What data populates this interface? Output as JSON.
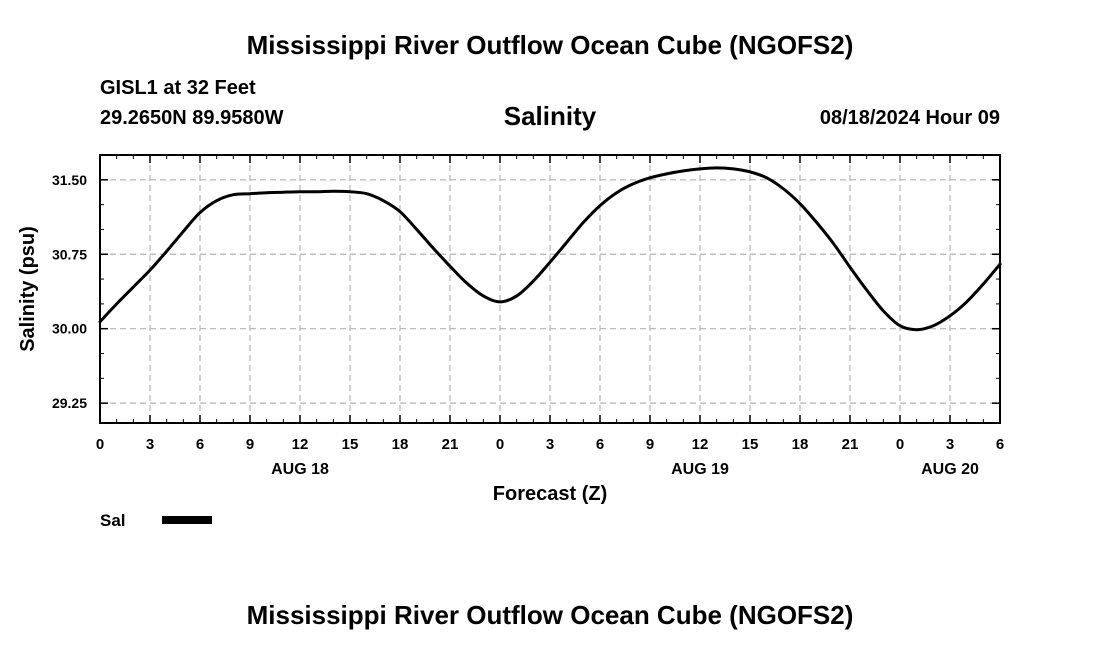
{
  "header": {
    "title": "Mississippi River Outflow Ocean Cube (NGOFS2)",
    "station": "GISL1 at 32 Feet",
    "coordinates": "29.2650N  89.9580W",
    "subtitle": "Salinity",
    "datetime": "08/18/2024 Hour 09"
  },
  "footer": {
    "title": "Mississippi River Outflow Ocean Cube (NGOFS2)"
  },
  "legend": {
    "label": "Sal"
  },
  "chart_data": {
    "type": "line",
    "title": "Salinity",
    "xlabel": "Forecast (Z)",
    "ylabel": "Salinity (psu)",
    "x_unit": "hours from 00Z AUG 18",
    "xlim": [
      0,
      54
    ],
    "ylim": [
      29.05,
      31.75
    ],
    "x_ticks": [
      {
        "x": 0,
        "label": "0"
      },
      {
        "x": 3,
        "label": "3"
      },
      {
        "x": 6,
        "label": "6"
      },
      {
        "x": 9,
        "label": "9"
      },
      {
        "x": 12,
        "label": "12"
      },
      {
        "x": 15,
        "label": "15"
      },
      {
        "x": 18,
        "label": "18"
      },
      {
        "x": 21,
        "label": "21"
      },
      {
        "x": 24,
        "label": "0"
      },
      {
        "x": 27,
        "label": "3"
      },
      {
        "x": 30,
        "label": "6"
      },
      {
        "x": 33,
        "label": "9"
      },
      {
        "x": 36,
        "label": "12"
      },
      {
        "x": 39,
        "label": "15"
      },
      {
        "x": 42,
        "label": "18"
      },
      {
        "x": 45,
        "label": "21"
      },
      {
        "x": 48,
        "label": "0"
      },
      {
        "x": 51,
        "label": "3"
      },
      {
        "x": 54,
        "label": "6"
      }
    ],
    "x_day_labels": [
      {
        "x": 12,
        "label": "AUG 18"
      },
      {
        "x": 36,
        "label": "AUG 19"
      },
      {
        "x": 51,
        "label": "AUG 20"
      }
    ],
    "y_ticks": [
      {
        "y": 29.25,
        "label": "29.25"
      },
      {
        "y": 30.0,
        "label": "30.00"
      },
      {
        "y": 30.75,
        "label": "30.75"
      },
      {
        "y": 31.5,
        "label": "31.50"
      }
    ],
    "grid": true,
    "legend_position": "bottom-left",
    "series": [
      {
        "name": "Sal",
        "color": "#000000",
        "x": [
          0,
          1,
          2,
          3,
          4,
          5,
          6,
          7,
          8,
          9,
          10,
          11,
          12,
          13,
          14,
          15,
          16,
          17,
          18,
          19,
          20,
          21,
          22,
          23,
          24,
          25,
          26,
          27,
          28,
          29,
          30,
          31,
          32,
          33,
          34,
          35,
          36,
          37,
          38,
          39,
          40,
          41,
          42,
          43,
          44,
          45,
          46,
          47,
          48,
          49,
          50,
          51,
          52,
          53,
          54
        ],
        "values": [
          30.07,
          30.25,
          30.42,
          30.59,
          30.78,
          30.98,
          31.17,
          31.29,
          31.35,
          31.36,
          31.37,
          31.375,
          31.38,
          31.38,
          31.385,
          31.38,
          31.36,
          31.29,
          31.18,
          31.0,
          30.81,
          30.63,
          30.46,
          30.33,
          30.27,
          30.33,
          30.48,
          30.67,
          30.87,
          31.07,
          31.24,
          31.37,
          31.46,
          31.52,
          31.56,
          31.59,
          31.61,
          31.62,
          31.61,
          31.58,
          31.52,
          31.41,
          31.26,
          31.07,
          30.86,
          30.62,
          30.39,
          30.18,
          30.03,
          29.99,
          30.03,
          30.13,
          30.27,
          30.45,
          30.65
        ]
      }
    ]
  }
}
